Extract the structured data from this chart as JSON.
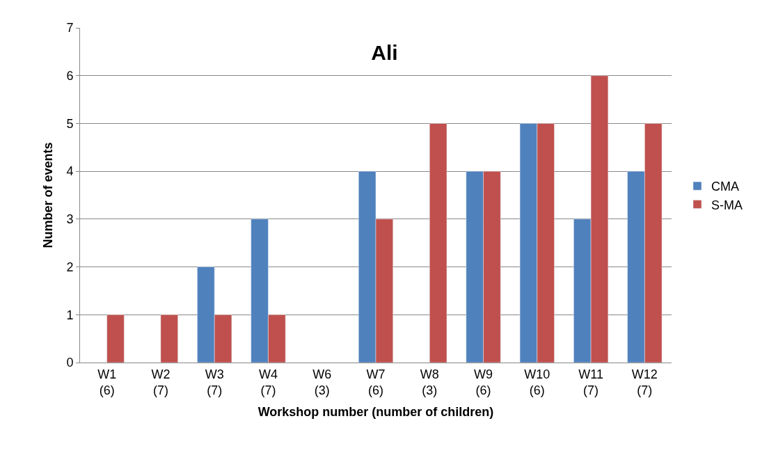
{
  "chart_data": {
    "type": "bar",
    "title": "Ali",
    "xlabel": "Workshop number (number of children)",
    "ylabel": "Number of events",
    "categories": [
      "W1\n(6)",
      "W2\n(7)",
      "W3\n(7)",
      "W4\n(7)",
      "W6\n(3)",
      "W7\n(6)",
      "W8\n(3)",
      "W9\n(6)",
      "W10\n(6)",
      "W11\n(7)",
      "W12\n(7)"
    ],
    "series": [
      {
        "name": "CMA",
        "color": "#4f81bd",
        "values": [
          null,
          null,
          2,
          3,
          null,
          4,
          null,
          4,
          5,
          3,
          4
        ]
      },
      {
        "name": "S-MA",
        "color": "#c0504d",
        "values": [
          1,
          1,
          1,
          1,
          null,
          3,
          5,
          4,
          5,
          6,
          5
        ]
      }
    ],
    "ylim": [
      0,
      7
    ],
    "yticks": [
      0,
      1,
      2,
      3,
      4,
      5,
      6,
      7
    ],
    "grid": "y",
    "legend": "right"
  }
}
